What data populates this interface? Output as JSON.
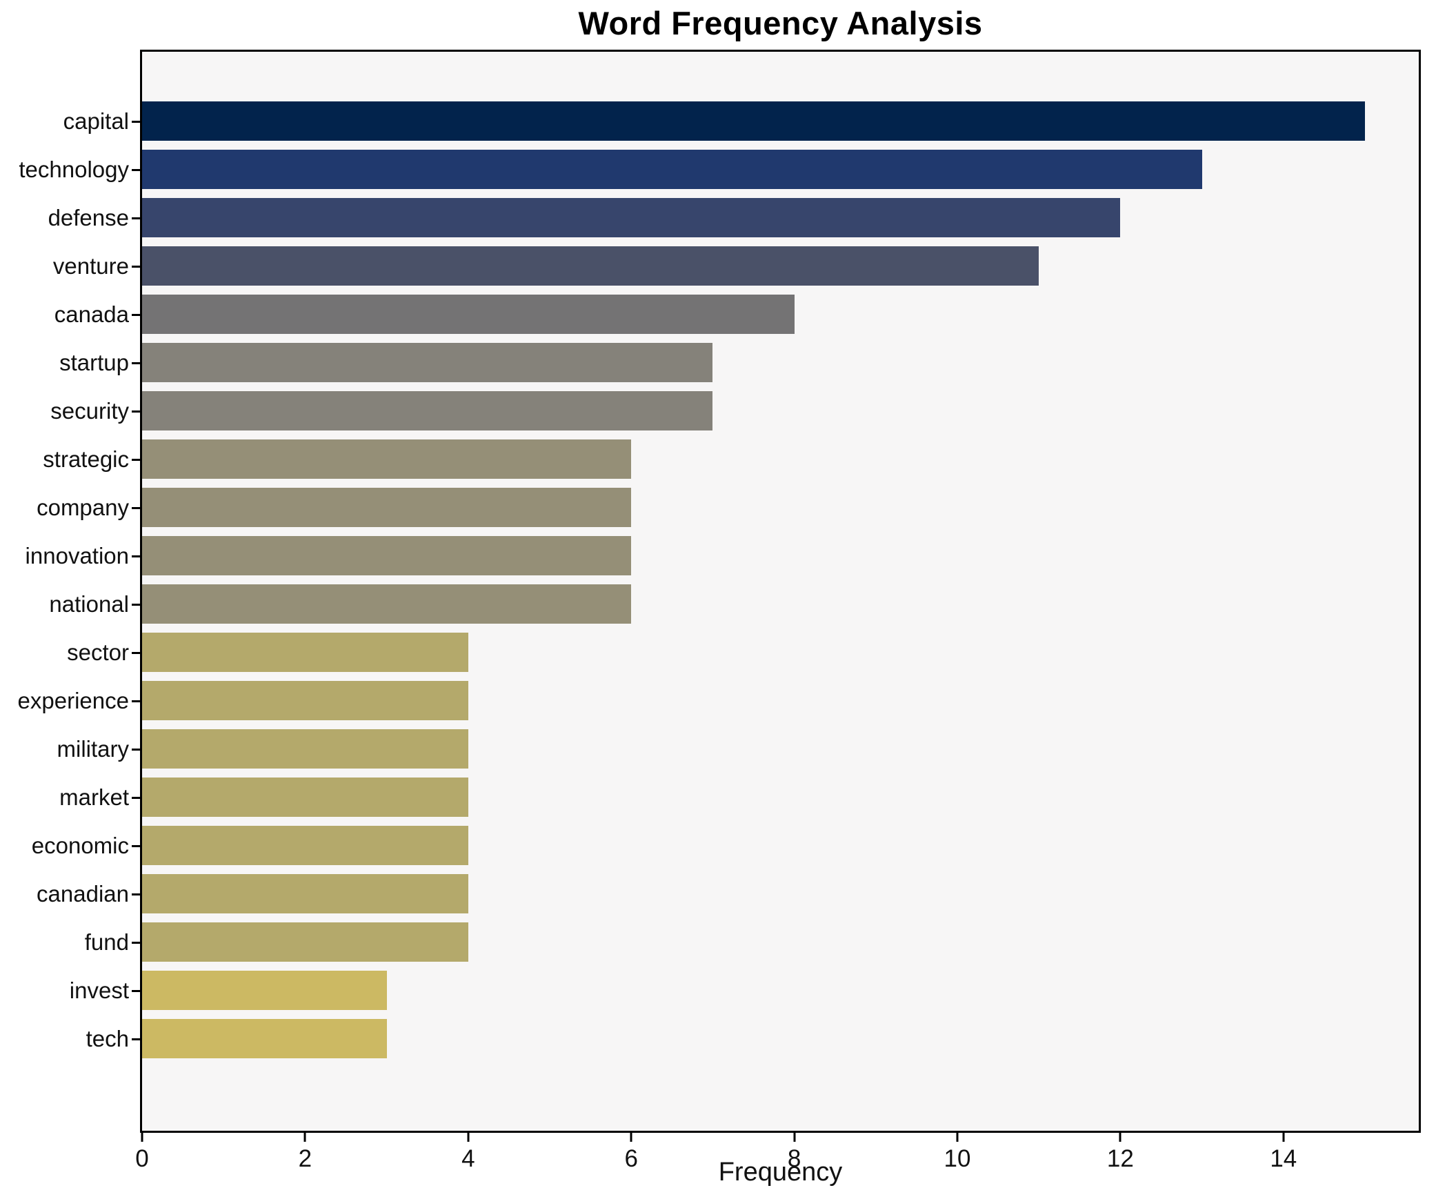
{
  "title": "Word Frequency Analysis",
  "chart_data": {
    "type": "bar",
    "orientation": "horizontal",
    "title": "Word Frequency Analysis",
    "xlabel": "Frequency",
    "ylabel": "",
    "categories": [
      "capital",
      "technology",
      "defense",
      "venture",
      "canada",
      "startup",
      "security",
      "strategic",
      "company",
      "innovation",
      "national",
      "sector",
      "experience",
      "military",
      "market",
      "economic",
      "canadian",
      "fund",
      "invest",
      "tech"
    ],
    "values": [
      15,
      13,
      12,
      11,
      8,
      7,
      7,
      6,
      6,
      6,
      6,
      4,
      4,
      4,
      4,
      4,
      4,
      4,
      3,
      3
    ],
    "bar_colors": [
      "#02234c",
      "#20396e",
      "#37456c",
      "#4a5168",
      "#747374",
      "#85827a",
      "#85827a",
      "#958f77",
      "#958f77",
      "#958f77",
      "#958f77",
      "#b4a96b",
      "#b4a96b",
      "#b4a96b",
      "#b4a96b",
      "#b4a96b",
      "#b4a96b",
      "#b4a96b",
      "#ccb963",
      "#ccb963"
    ],
    "xticks": [
      0,
      2,
      4,
      6,
      8,
      10,
      12,
      14
    ],
    "xlim": [
      0,
      15.66
    ],
    "grid": false,
    "legend": false,
    "plot_background": "#f7f6f6",
    "figure_background": "#ffffff",
    "spine_color": "#000000",
    "colormap": "cividis"
  }
}
